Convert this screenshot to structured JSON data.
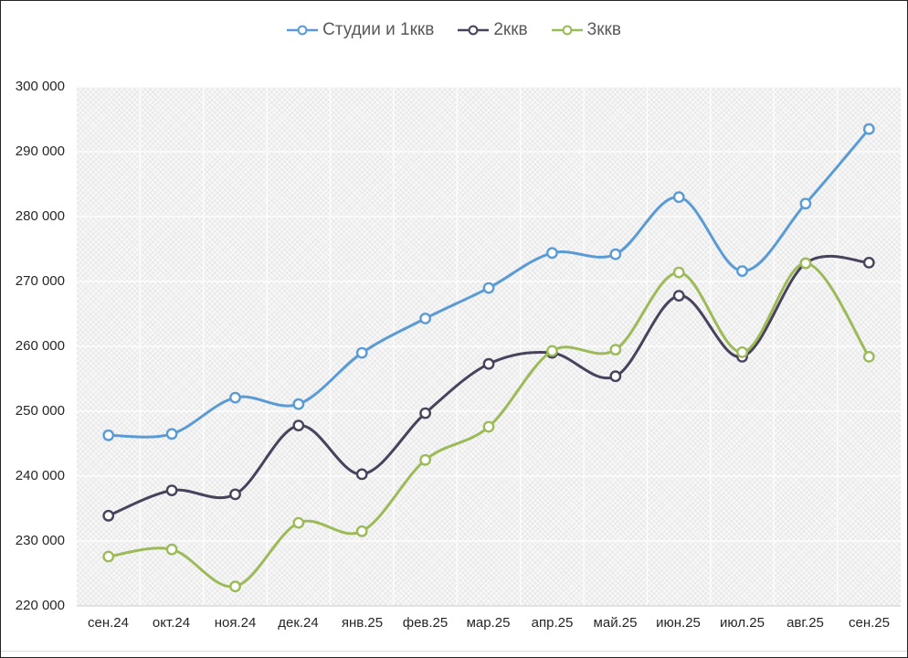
{
  "chart_data": {
    "type": "line",
    "title": "",
    "smooth": true,
    "marker": "circle",
    "grid": true,
    "legend_position": "top",
    "categories": [
      "сен.24",
      "окт.24",
      "ноя.24",
      "дек.24",
      "янв.25",
      "фев.25",
      "мар.25",
      "апр.25",
      "май.25",
      "июн.25",
      "июл.25",
      "авг.25",
      "сен.25"
    ],
    "series": [
      {
        "name": "Студии и 1ккв",
        "color": "#5B9BD5",
        "values": [
          246300,
          246500,
          252100,
          251100,
          259000,
          264300,
          269000,
          274400,
          274200,
          283000,
          271600,
          282000,
          293500
        ]
      },
      {
        "name": "2ккв",
        "color": "#48425C",
        "values": [
          233900,
          237800,
          237200,
          247800,
          240300,
          249700,
          257300,
          259000,
          255400,
          267800,
          258400,
          272800,
          272900
        ]
      },
      {
        "name": "3ккв",
        "color": "#9CBB58",
        "values": [
          227600,
          228700,
          223000,
          232800,
          231500,
          242500,
          247600,
          259300,
          259500,
          271400,
          259100,
          272800,
          258400
        ]
      }
    ],
    "ylim": [
      220000,
      300000
    ],
    "yticks": [
      {
        "value": 300000,
        "label": "300 000"
      },
      {
        "value": 290000,
        "label": "290 000"
      },
      {
        "value": 280000,
        "label": "280 000"
      },
      {
        "value": 270000,
        "label": "270 000"
      },
      {
        "value": 260000,
        "label": "260 000"
      },
      {
        "value": 250000,
        "label": "250 000"
      },
      {
        "value": 240000,
        "label": "240 000"
      },
      {
        "value": 230000,
        "label": "230 000"
      },
      {
        "value": 220000,
        "label": "220 000"
      }
    ]
  }
}
